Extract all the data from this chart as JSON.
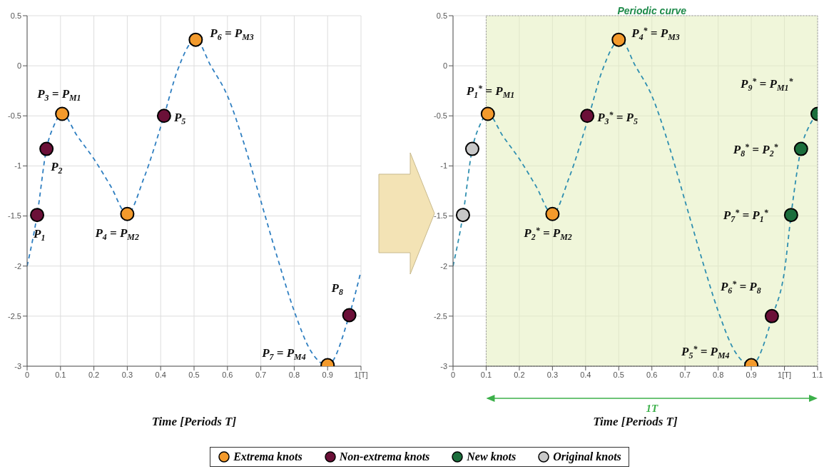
{
  "chart_data": [
    {
      "type": "scatter",
      "xlabel": "Time [Periods T]",
      "xlim": [
        0,
        1
      ],
      "xticks": [
        0,
        0.1,
        0.2,
        0.3,
        0.4,
        0.5,
        0.6,
        0.7,
        0.8,
        0.9,
        {
          "value": 1,
          "label": "1[T]"
        }
      ],
      "ylim": [
        -3,
        0.5
      ],
      "yticks": [
        -3,
        -2.5,
        -2,
        -1.5,
        -1,
        -0.5,
        0,
        0.5
      ],
      "grid": true,
      "legend": "bottom",
      "series": [
        {
          "type": "line",
          "line_style": "dashed",
          "color": "#2f7fc1",
          "x": [
            0,
            0.03,
            0.058,
            0.08,
            0.105,
            0.15,
            0.2,
            0.25,
            0.3,
            0.35,
            0.41,
            0.45,
            0.505,
            0.55,
            0.6,
            0.65,
            0.7,
            0.75,
            0.8,
            0.85,
            0.9,
            0.965,
            1.0
          ],
          "values": [
            -2,
            -1.49,
            -0.83,
            -0.6,
            -0.48,
            -0.7,
            -0.93,
            -1.2,
            -1.48,
            -1.12,
            -0.5,
            -0.05,
            0.26,
            0.0,
            -0.3,
            -0.78,
            -1.35,
            -1.92,
            -2.45,
            -2.85,
            -2.99,
            -2.49,
            -2.05
          ]
        },
        {
          "name": "Extrema knots",
          "color": "#f39a2c",
          "marker": "circle",
          "x": [
            0.105,
            0.3,
            0.505,
            0.9
          ],
          "values": [
            -0.48,
            -1.48,
            0.26,
            -2.99
          ]
        },
        {
          "name": "Non-extrema knots",
          "color": "#6b1038",
          "marker": "circle",
          "x": [
            0.03,
            0.058,
            0.41,
            0.965
          ],
          "values": [
            -1.49,
            -0.83,
            -0.5,
            -2.49
          ]
        }
      ],
      "annotations": [
        {
          "text": "P$_{1}$",
          "x": 0.03,
          "y": -1.49
        },
        {
          "text": "P$_{2}$",
          "x": 0.058,
          "y": -0.83
        },
        {
          "text": "P$_{3}$ = P$_{M1}$",
          "x": 0.105,
          "y": -0.48
        },
        {
          "text": "P$_{4}$ = P$_{M2}$",
          "x": 0.3,
          "y": -1.48
        },
        {
          "text": "P$_{5}$",
          "x": 0.41,
          "y": -0.5
        },
        {
          "text": "P$_{6}$ = P$_{M3}$",
          "x": 0.505,
          "y": 0.26
        },
        {
          "text": "P$_{7}$ = P$_{M4}$",
          "x": 0.9,
          "y": -2.99
        },
        {
          "text": "P$_{8}$",
          "x": 0.965,
          "y": -2.49
        }
      ]
    },
    {
      "type": "scatter",
      "xlabel": "Time [Periods T]",
      "xlim": [
        0,
        1.1
      ],
      "xticks": [
        0,
        0.1,
        0.2,
        0.3,
        0.4,
        0.5,
        0.6,
        0.7,
        0.8,
        0.9,
        {
          "value": 1,
          "label": "1[T]"
        },
        1.1
      ],
      "ylim": [
        -3,
        0.5
      ],
      "yticks": [
        -3,
        -2.5,
        -2,
        -1.5,
        -1,
        -0.5,
        0,
        0.5
      ],
      "grid": true,
      "legend": "bottom",
      "bands": [
        {
          "axis": "x",
          "from": 0.1,
          "to": 1.1,
          "label": "Periodic curve",
          "color": "#e4eebb"
        }
      ],
      "series": [
        {
          "type": "line",
          "line_style": "dashed",
          "color": "#2f8fb0",
          "x": [
            0,
            0.03,
            0.058,
            0.08,
            0.105,
            0.15,
            0.2,
            0.25,
            0.3,
            0.35,
            0.41,
            0.45,
            0.505,
            0.55,
            0.6,
            0.65,
            0.7,
            0.75,
            0.8,
            0.85,
            0.9,
            0.965,
            1.0,
            1.02,
            1.05,
            1.075,
            1.1
          ],
          "values": [
            -2,
            -1.49,
            -0.83,
            -0.6,
            -0.48,
            -0.7,
            -0.93,
            -1.2,
            -1.48,
            -1.12,
            -0.5,
            -0.05,
            0.26,
            0.0,
            -0.3,
            -0.78,
            -1.35,
            -1.92,
            -2.45,
            -2.85,
            -2.99,
            -2.49,
            -2.05,
            -1.49,
            -0.83,
            -0.6,
            -0.48
          ]
        },
        {
          "name": "Extrema knots",
          "color": "#f39a2c",
          "marker": "circle",
          "x": [
            0.105,
            0.3,
            0.5,
            0.9
          ],
          "values": [
            -0.48,
            -1.48,
            0.26,
            -2.99
          ]
        },
        {
          "name": "Non-extrema knots",
          "color": "#6b1038",
          "marker": "circle",
          "x": [
            0.405,
            0.962
          ],
          "values": [
            -0.5,
            -2.5
          ]
        },
        {
          "name": "New knots",
          "color": "#1b6e3c",
          "marker": "circle",
          "x": [
            1.02,
            1.05,
            1.1
          ],
          "values": [
            -1.49,
            -0.83,
            -0.48
          ]
        },
        {
          "name": "Original knots",
          "color": "#c8c8c8",
          "marker": "circle",
          "x": [
            0.03,
            0.058
          ],
          "values": [
            -1.49,
            -0.83
          ]
        }
      ],
      "annotations": [
        {
          "text": "P$_{1}$$^{*}$ = P$_{M1}$",
          "x": 0.105,
          "y": -0.48
        },
        {
          "text": "P$_{2}$$^{*}$ = P$_{M2}$",
          "x": 0.3,
          "y": -1.48
        },
        {
          "text": "P$_{3}$$^{*}$ = P$_{5}$",
          "x": 0.405,
          "y": -0.5
        },
        {
          "text": "P$_{4}$$^{*}$ = P$_{M3}$",
          "x": 0.5,
          "y": 0.26
        },
        {
          "text": "P$_{5}$$^{*}$ = P$_{M4}$",
          "x": 0.9,
          "y": -2.99
        },
        {
          "text": "P$_{6}$$^{*}$ = P$_{8}$",
          "x": 0.962,
          "y": -2.5
        },
        {
          "text": "P$_{7}$$^{*}$ = P$_{1}$$^{*}$",
          "x": 1.02,
          "y": -1.49
        },
        {
          "text": "P$_{8}$$^{*}$ = P$_{2}$$^{*}$",
          "x": 1.05,
          "y": -0.83
        },
        {
          "text": "P$_{9}$$^{*}$ = P$_{M1}$$^{*}$",
          "x": 1.1,
          "y": -0.48
        },
        "1T"
      ]
    }
  ]
}
